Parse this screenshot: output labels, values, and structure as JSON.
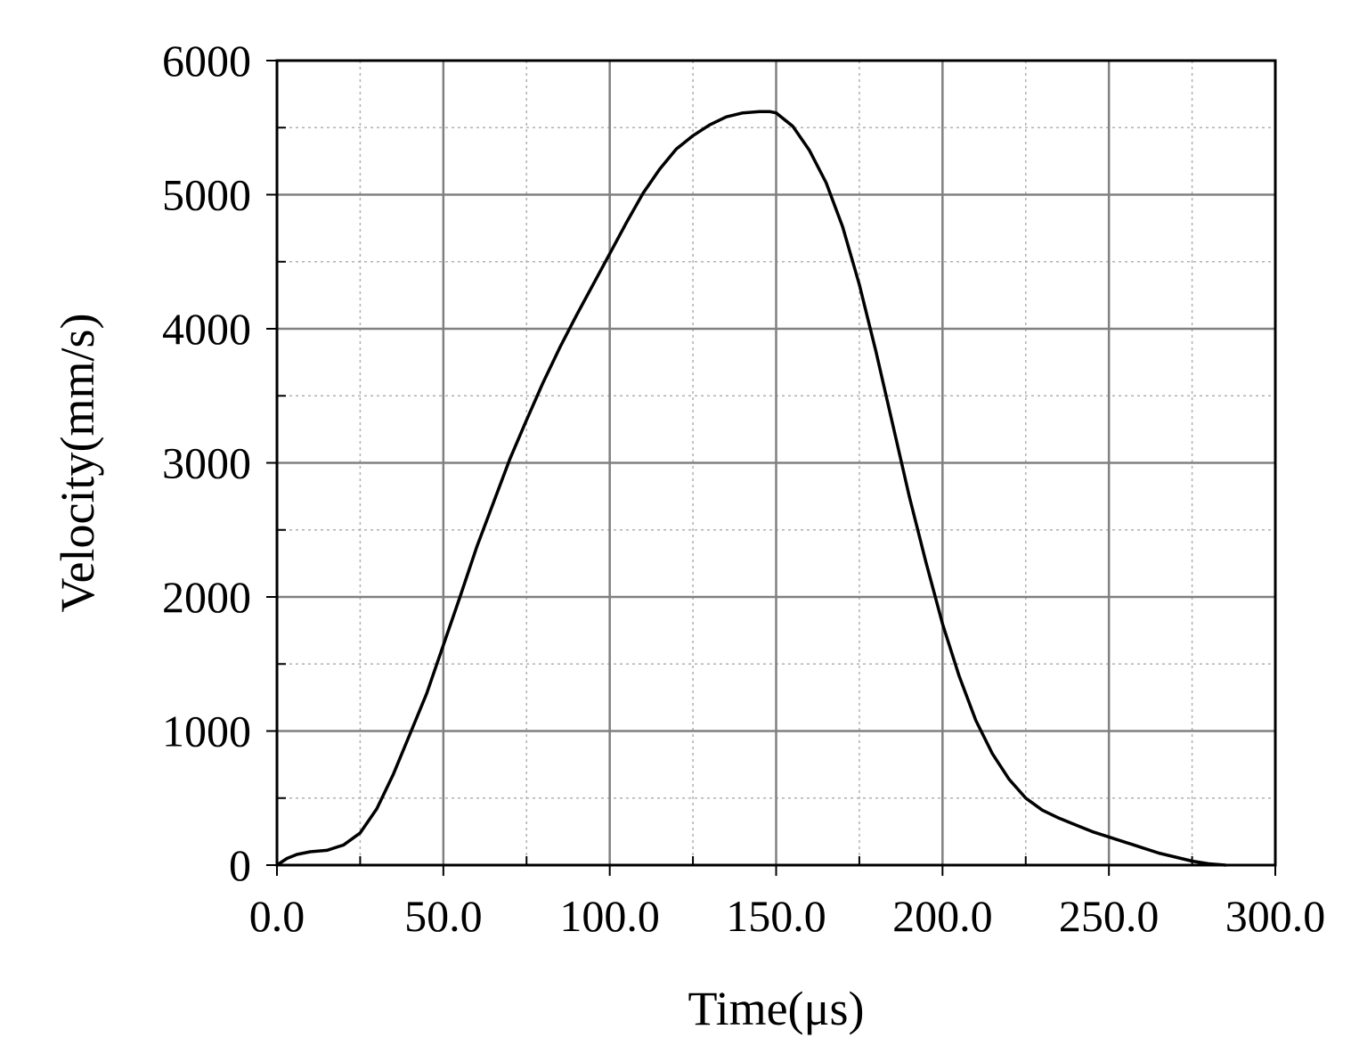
{
  "chart_data": {
    "type": "line",
    "title": "",
    "xlabel": "Time(μs)",
    "ylabel": "Velocity(mm/s)",
    "xlim": [
      0,
      300
    ],
    "ylim": [
      0,
      6000
    ],
    "x_ticks": [
      0,
      50,
      100,
      150,
      200,
      250,
      300
    ],
    "x_tick_labels": [
      "0.0",
      "50.0",
      "100.0",
      "150.0",
      "200.0",
      "250.0",
      "300.0"
    ],
    "y_ticks": [
      0,
      1000,
      2000,
      3000,
      4000,
      5000,
      6000
    ],
    "y_tick_labels": [
      "0",
      "1000",
      "2000",
      "3000",
      "4000",
      "5000",
      "6000"
    ],
    "x_minor_step": 25,
    "y_minor_step": 500,
    "grid": true,
    "legend": "none",
    "colors": {
      "line": "#000000",
      "major_grid": "#808080",
      "minor_grid": "#b0b0b0",
      "axis": "#000000"
    },
    "series": [
      {
        "x": [
          0,
          3,
          6,
          10,
          15,
          20,
          25,
          30,
          35,
          40,
          45,
          50,
          55,
          60,
          65,
          70,
          75,
          80,
          85,
          90,
          95,
          100,
          105,
          110,
          115,
          120,
          125,
          130,
          135,
          140,
          145,
          148,
          150,
          155,
          160,
          165,
          170,
          175,
          180,
          185,
          190,
          195,
          200,
          205,
          210,
          215,
          220,
          225,
          230,
          235,
          240,
          245,
          250,
          255,
          260,
          265,
          270,
          275,
          280,
          285
        ],
        "y": [
          0,
          50,
          80,
          100,
          110,
          150,
          240,
          420,
          680,
          980,
          1280,
          1640,
          2000,
          2370,
          2700,
          3030,
          3320,
          3600,
          3860,
          4100,
          4330,
          4560,
          4790,
          5010,
          5190,
          5340,
          5440,
          5520,
          5580,
          5610,
          5620,
          5620,
          5610,
          5510,
          5330,
          5090,
          4760,
          4330,
          3830,
          3290,
          2750,
          2260,
          1800,
          1410,
          1080,
          830,
          640,
          500,
          410,
          350,
          300,
          250,
          210,
          170,
          130,
          90,
          60,
          30,
          10,
          0
        ]
      }
    ]
  }
}
